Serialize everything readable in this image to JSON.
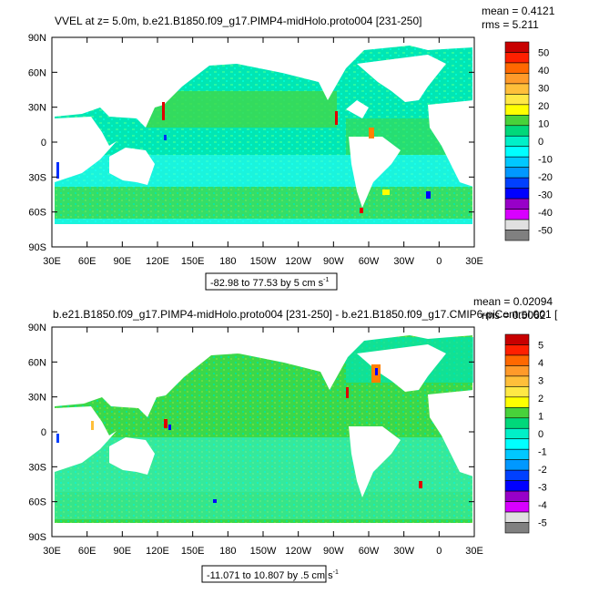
{
  "panels": [
    {
      "title": "VVEL at z=   5.0m, b.e21.B1850.f09_g17.PIMP4-midHolo.proto004 [231-250]",
      "stats": {
        "mean": "mean = 0.4121",
        "rms": "rms = 5.211"
      },
      "range_label": "-82.98 to 77.53 by 5 cm s",
      "range_unit_sup": "-1",
      "colorbar_labels": [
        "50",
        "40",
        "30",
        "20",
        "10",
        "0",
        "-10",
        "-20",
        "-30",
        "-40",
        "-50"
      ]
    },
    {
      "title": "b.e21.B1850.f09_g17.PIMP4-midHolo.proto004 [231-250] - b.e21.B1850.f09_g17.CMIP6-piControl.001 [",
      "stats": {
        "mean": "mean = 0.02094",
        "rms": "rms = 0.5062"
      },
      "range_label": "-11.071 to 10.807 by .5 cm s",
      "range_unit_sup": "-1",
      "colorbar_labels": [
        "5",
        "4",
        "3",
        "2",
        "1",
        "0",
        "-1",
        "-2",
        "-3",
        "-4",
        "-5"
      ]
    }
  ],
  "axes": {
    "lat_labels": [
      "90N",
      "60N",
      "30N",
      "0",
      "30S",
      "60S",
      "90S"
    ],
    "lon_labels": [
      "30E",
      "60E",
      "90E",
      "120E",
      "150E",
      "180",
      "150W",
      "120W",
      "90W",
      "60W",
      "30W",
      "0",
      "30E"
    ]
  },
  "colorbar_colors": [
    "#c80000",
    "#ff2000",
    "#ff6800",
    "#ff9a2a",
    "#ffbf3a",
    "#ffe845",
    "#ffff00",
    "#48d23a",
    "#00d87a",
    "#00f0c8",
    "#00ffff",
    "#00c8ff",
    "#0098ff",
    "#0040ff",
    "#0000ff",
    "#9800c8",
    "#d800ff",
    "#e0e0e0",
    "#808080"
  ],
  "map_colors": {
    "land": "#ffffff",
    "ocean_main": "#00e0b0",
    "ocean_light": "#30ffff",
    "ocean_green": "#40d848",
    "hot": "#e00000",
    "cold": "#0030ff",
    "warm": "#ffff00"
  }
}
